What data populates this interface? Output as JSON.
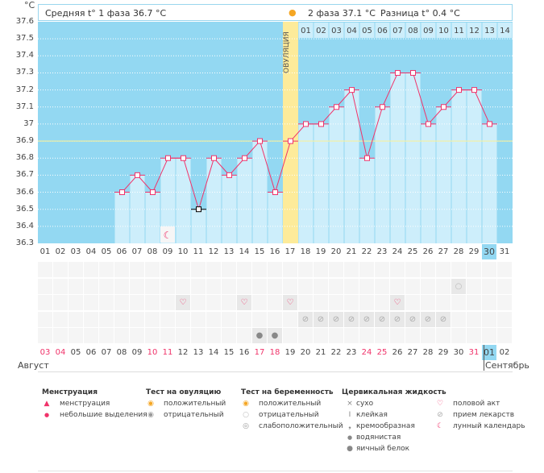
{
  "unit_label": "°C",
  "header": {
    "phase1": "Средняя t° 1 фаза 36.7 °C",
    "phase2": "2 фаза 37.1 °C",
    "diff": "Разница t° 0.4 °C"
  },
  "ovulation_label": "ОВУЛЯЦИЯ",
  "chart_data": {
    "type": "bar",
    "ylim": [
      36.3,
      37.6
    ],
    "yticks": [
      "37.6",
      "37.5",
      "37.4",
      "37.3",
      "37.2",
      "37.1",
      "37",
      "36.9",
      "36.8",
      "36.7",
      "36.6",
      "36.5",
      "36.4",
      "36.3"
    ],
    "coverline": 36.9,
    "ovulation_day": 17,
    "highlight_day": 30,
    "x": [
      "01",
      "02",
      "03",
      "04",
      "05",
      "06",
      "07",
      "08",
      "09",
      "10",
      "11",
      "12",
      "13",
      "14",
      "15",
      "16",
      "17",
      "18",
      "19",
      "20",
      "21",
      "22",
      "23",
      "24",
      "25",
      "26",
      "27",
      "28",
      "29",
      "30",
      "31"
    ],
    "values": [
      null,
      null,
      null,
      null,
      null,
      36.6,
      36.7,
      36.6,
      36.8,
      36.8,
      36.5,
      36.8,
      36.7,
      36.8,
      36.9,
      36.6,
      36.9,
      37.0,
      37.0,
      37.1,
      37.2,
      36.8,
      37.1,
      37.3,
      37.3,
      37.0,
      37.1,
      37.2,
      37.2,
      37.0,
      null
    ],
    "excluded_days": [
      11
    ],
    "post_ovulation_days": [
      "01",
      "02",
      "03",
      "04",
      "05",
      "06",
      "07",
      "08",
      "09",
      "10",
      "11",
      "12",
      "13",
      "14"
    ],
    "colors": {
      "background": "#93d8f2",
      "bar": "#cdeefb",
      "line": "#f0336a",
      "ovulation": "#fdeb9a",
      "coverline": "#f5f0a0"
    }
  },
  "moon_day": 9,
  "markers": {
    "pregnancy_test_negative": [
      28
    ],
    "intercourse": [
      10,
      14,
      17,
      24
    ],
    "medication": [
      18,
      19,
      20,
      21,
      22,
      23,
      24,
      25,
      26,
      27
    ],
    "egg_white": [
      15,
      16
    ]
  },
  "calendar": {
    "dates": [
      "03",
      "04",
      "05",
      "06",
      "07",
      "08",
      "09",
      "10",
      "11",
      "12",
      "13",
      "14",
      "15",
      "16",
      "17",
      "18",
      "19",
      "20",
      "21",
      "22",
      "23",
      "24",
      "25",
      "26",
      "27",
      "28",
      "29",
      "30",
      "31",
      "01",
      "02"
    ],
    "red": [
      "03",
      "04",
      "10",
      "11",
      "17",
      "18",
      "24",
      "25",
      "31"
    ],
    "highlight_index": 29,
    "month1": "Август",
    "month2": "Сентябрь"
  },
  "legend": {
    "menstruation": {
      "title": "Менструация",
      "items": [
        "менструация",
        "небольшие выделения"
      ]
    },
    "ovulation_test": {
      "title": "Тест на овуляцию",
      "items": [
        "положительный",
        "отрицательный"
      ]
    },
    "pregnancy_test": {
      "title": "Тест на беременность",
      "items": [
        "положительный",
        "отрицательный",
        "слабоположительный"
      ]
    },
    "cervical": {
      "title": "Цервикальная жидкость",
      "items": [
        "сухо",
        "клейкая",
        "кремообразная",
        "водянистая",
        "яичный белок"
      ]
    },
    "other": {
      "items": [
        "половой акт",
        "прием лекарств",
        "лунный календарь"
      ]
    }
  }
}
